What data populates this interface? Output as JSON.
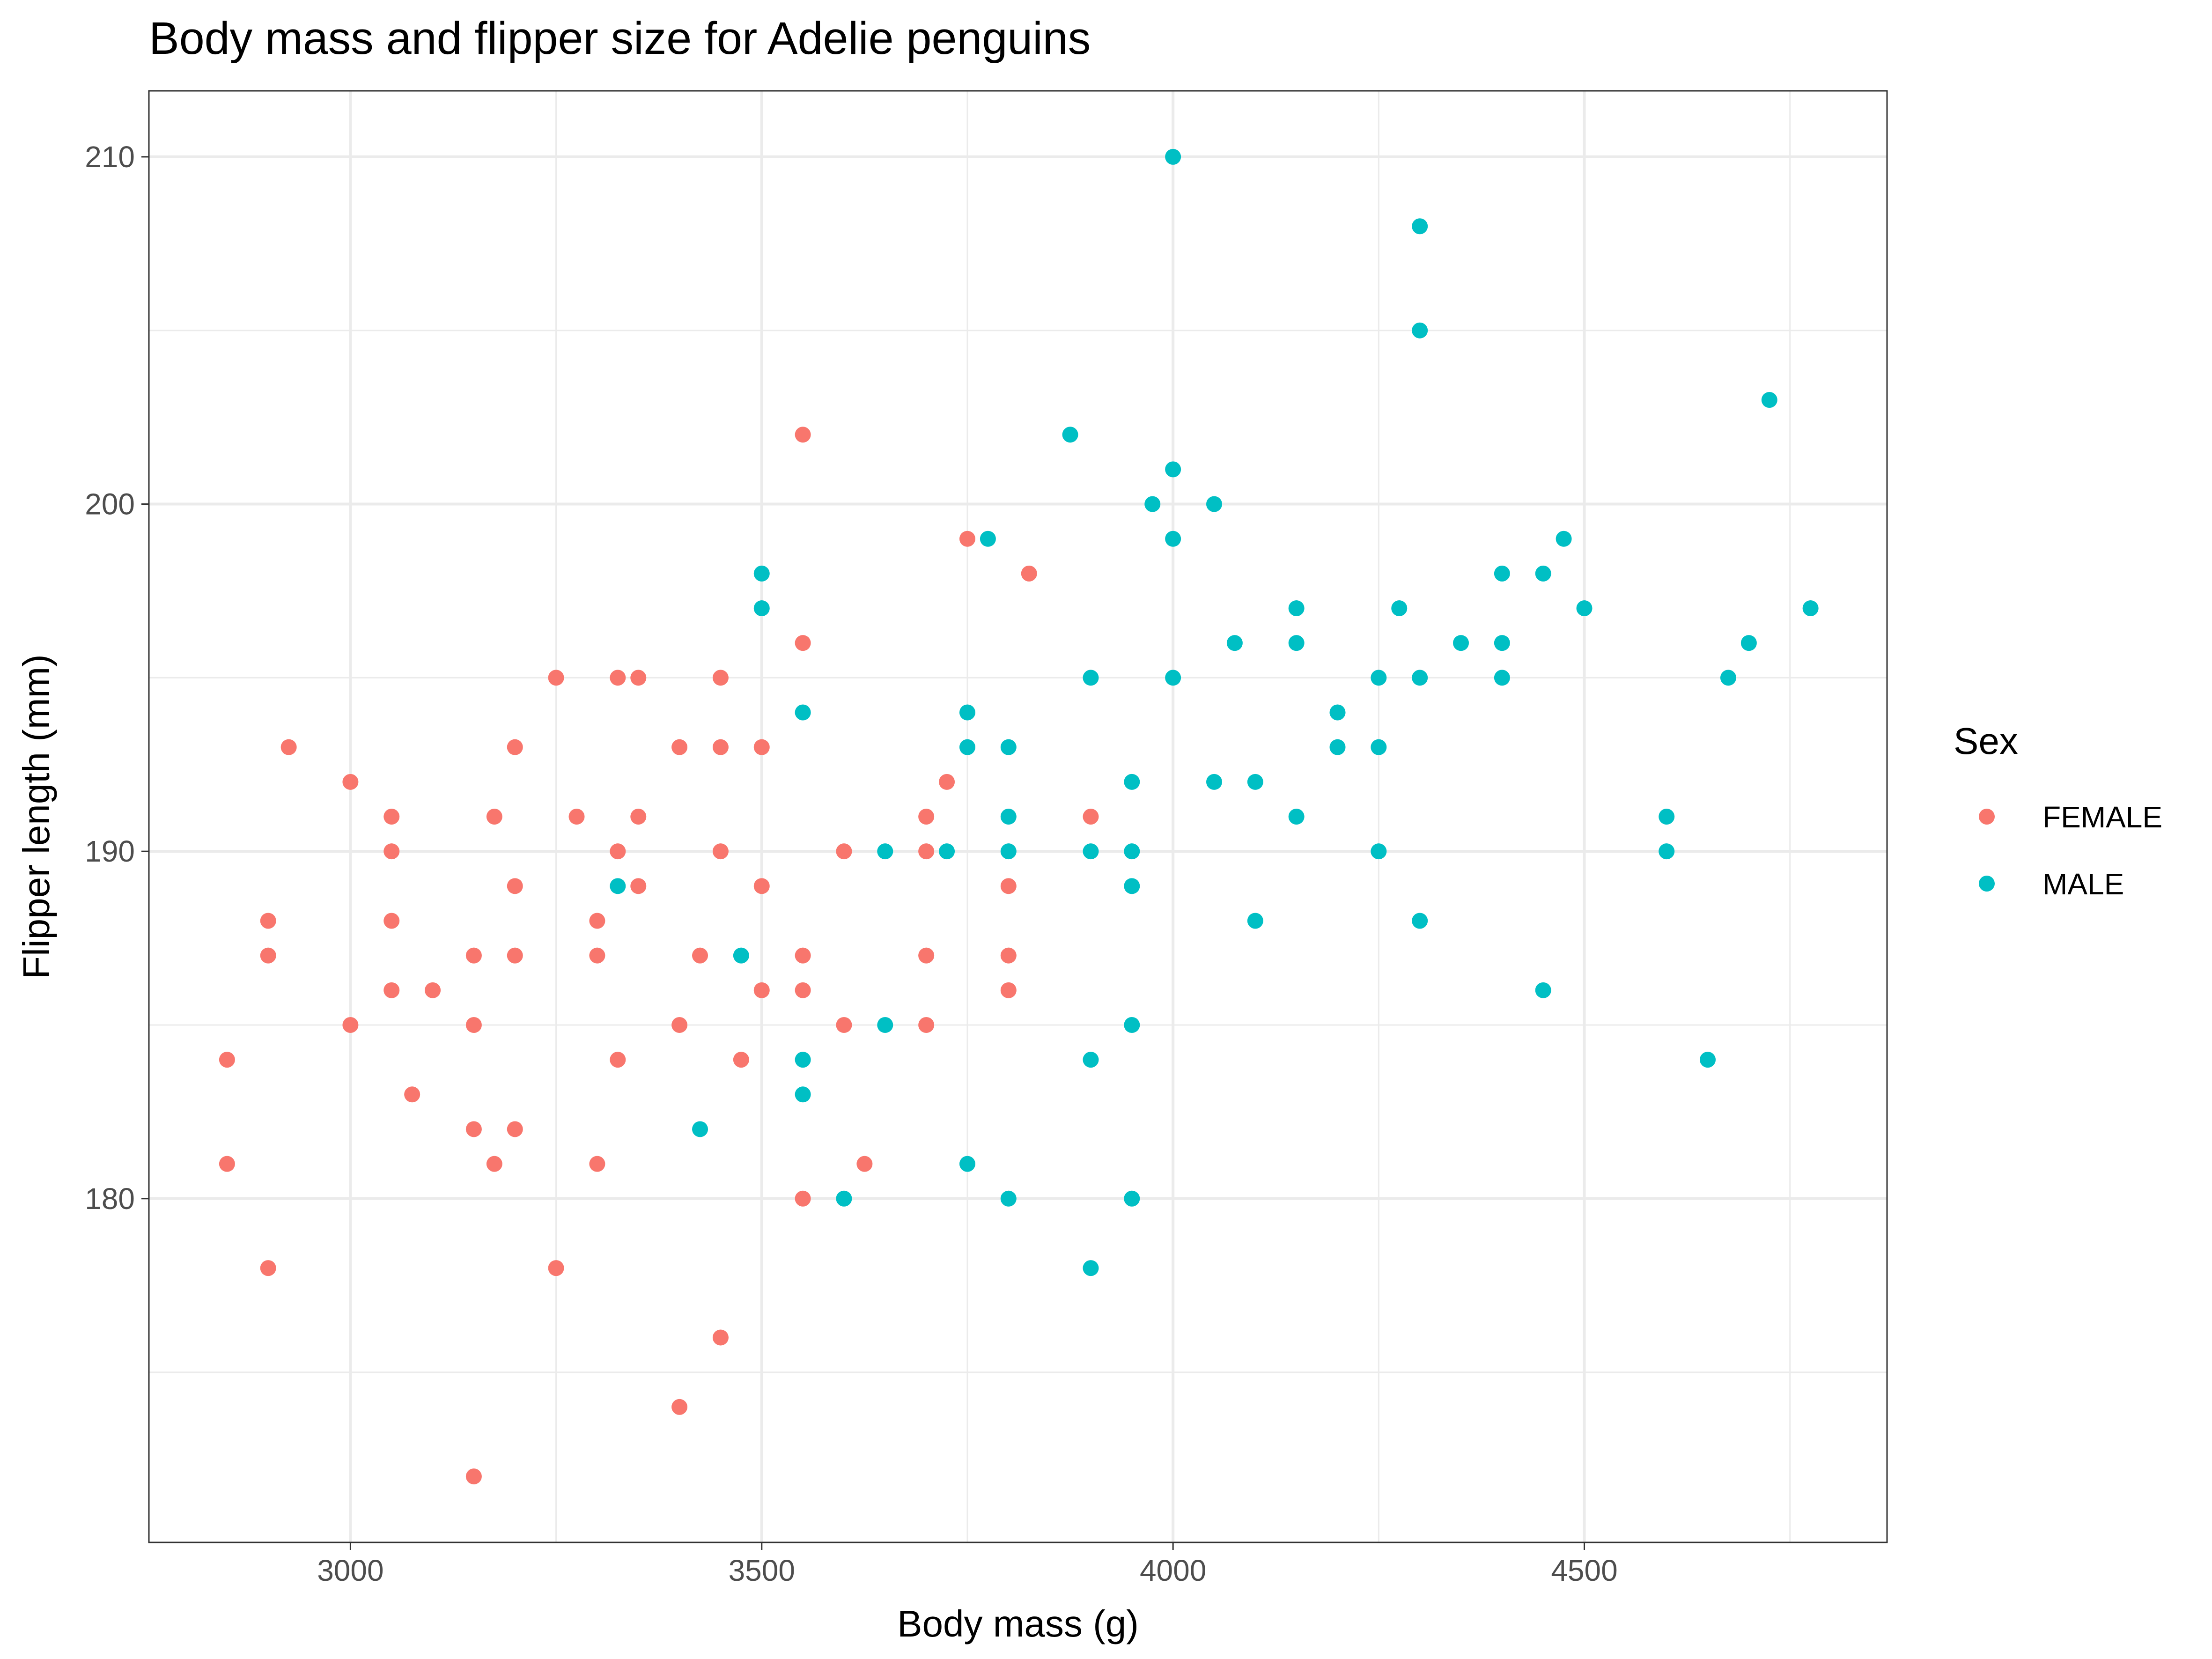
{
  "chart_data": {
    "type": "scatter",
    "title": "Body mass and flipper size for Adelie penguins",
    "xlabel": "Body mass (g)",
    "ylabel": "Flipper length (mm)",
    "xlim": [
      2755,
      4868
    ],
    "ylim": [
      170.1,
      211.9
    ],
    "x_ticks": [
      3000,
      3500,
      4000,
      4500
    ],
    "x_tick_labels": [
      "3000",
      "3500",
      "4000",
      "4500"
    ],
    "x_minor_ticks": [
      3250,
      3750,
      4250,
      4750
    ],
    "y_ticks": [
      180,
      190,
      200,
      210
    ],
    "y_tick_labels": [
      "180",
      "190",
      "200",
      "210"
    ],
    "y_minor_ticks": [
      175,
      185,
      195,
      205
    ],
    "grid": true,
    "legend": {
      "title": "Sex",
      "position": "right",
      "entries": [
        {
          "label": "FEMALE",
          "color": "#F8766D"
        },
        {
          "label": "MALE",
          "color": "#00BFC4"
        }
      ]
    },
    "series": [
      {
        "name": "FEMALE",
        "color": "#F8766D",
        "points": [
          [
            2850,
            184
          ],
          [
            2850,
            181
          ],
          [
            2900,
            188
          ],
          [
            2900,
            187
          ],
          [
            2900,
            178
          ],
          [
            2925,
            193
          ],
          [
            3000,
            192
          ],
          [
            3000,
            185
          ],
          [
            3050,
            191
          ],
          [
            3050,
            190
          ],
          [
            3050,
            188
          ],
          [
            3050,
            186
          ],
          [
            3075,
            183
          ],
          [
            3100,
            186
          ],
          [
            3150,
            187
          ],
          [
            3150,
            185
          ],
          [
            3150,
            182
          ],
          [
            3150,
            172
          ],
          [
            3175,
            191
          ],
          [
            3175,
            181
          ],
          [
            3200,
            193
          ],
          [
            3200,
            189
          ],
          [
            3200,
            187
          ],
          [
            3200,
            182
          ],
          [
            3250,
            195
          ],
          [
            3250,
            178
          ],
          [
            3275,
            191
          ],
          [
            3300,
            188
          ],
          [
            3300,
            187
          ],
          [
            3300,
            181
          ],
          [
            3325,
            195
          ],
          [
            3325,
            190
          ],
          [
            3325,
            184
          ],
          [
            3350,
            195
          ],
          [
            3350,
            191
          ],
          [
            3350,
            189
          ],
          [
            3400,
            193
          ],
          [
            3400,
            185
          ],
          [
            3400,
            174
          ],
          [
            3425,
            187
          ],
          [
            3450,
            195
          ],
          [
            3450,
            193
          ],
          [
            3450,
            190
          ],
          [
            3450,
            176
          ],
          [
            3475,
            184
          ],
          [
            3500,
            193
          ],
          [
            3500,
            189
          ],
          [
            3500,
            186
          ],
          [
            3550,
            202
          ],
          [
            3550,
            196
          ],
          [
            3550,
            187
          ],
          [
            3550,
            186
          ],
          [
            3550,
            180
          ],
          [
            3600,
            190
          ],
          [
            3600,
            185
          ],
          [
            3625,
            181
          ],
          [
            3700,
            191
          ],
          [
            3700,
            190
          ],
          [
            3700,
            187
          ],
          [
            3700,
            185
          ],
          [
            3725,
            192
          ],
          [
            3750,
            199
          ],
          [
            3800,
            189
          ],
          [
            3800,
            187
          ],
          [
            3800,
            186
          ],
          [
            3825,
            198
          ],
          [
            3900,
            191
          ]
        ]
      },
      {
        "name": "MALE",
        "color": "#00BFC4",
        "points": [
          [
            3325,
            189
          ],
          [
            3425,
            182
          ],
          [
            3475,
            187
          ],
          [
            3500,
            198
          ],
          [
            3500,
            197
          ],
          [
            3550,
            194
          ],
          [
            3550,
            184
          ],
          [
            3550,
            183
          ],
          [
            3600,
            180
          ],
          [
            3650,
            190
          ],
          [
            3650,
            185
          ],
          [
            3725,
            190
          ],
          [
            3750,
            194
          ],
          [
            3750,
            193
          ],
          [
            3750,
            181
          ],
          [
            3775,
            199
          ],
          [
            3800,
            193
          ],
          [
            3800,
            191
          ],
          [
            3800,
            190
          ],
          [
            3800,
            180
          ],
          [
            3875,
            202
          ],
          [
            3900,
            195
          ],
          [
            3900,
            190
          ],
          [
            3900,
            184
          ],
          [
            3900,
            178
          ],
          [
            3950,
            192
          ],
          [
            3950,
            190
          ],
          [
            3950,
            189
          ],
          [
            3950,
            185
          ],
          [
            3950,
            180
          ],
          [
            3975,
            200
          ],
          [
            4000,
            210
          ],
          [
            4000,
            201
          ],
          [
            4000,
            199
          ],
          [
            4000,
            195
          ],
          [
            4050,
            200
          ],
          [
            4050,
            192
          ],
          [
            4075,
            196
          ],
          [
            4100,
            192
          ],
          [
            4100,
            188
          ],
          [
            4150,
            197
          ],
          [
            4150,
            196
          ],
          [
            4150,
            191
          ],
          [
            4200,
            194
          ],
          [
            4200,
            193
          ],
          [
            4250,
            195
          ],
          [
            4250,
            193
          ],
          [
            4250,
            190
          ],
          [
            4275,
            197
          ],
          [
            4300,
            208
          ],
          [
            4300,
            205
          ],
          [
            4300,
            195
          ],
          [
            4300,
            188
          ],
          [
            4350,
            196
          ],
          [
            4400,
            198
          ],
          [
            4400,
            196
          ],
          [
            4400,
            195
          ],
          [
            4450,
            198
          ],
          [
            4450,
            186
          ],
          [
            4475,
            199
          ],
          [
            4500,
            197
          ],
          [
            4600,
            191
          ],
          [
            4600,
            190
          ],
          [
            4650,
            184
          ],
          [
            4675,
            195
          ],
          [
            4700,
            196
          ],
          [
            4725,
            203
          ],
          [
            4775,
            197
          ]
        ]
      }
    ]
  }
}
